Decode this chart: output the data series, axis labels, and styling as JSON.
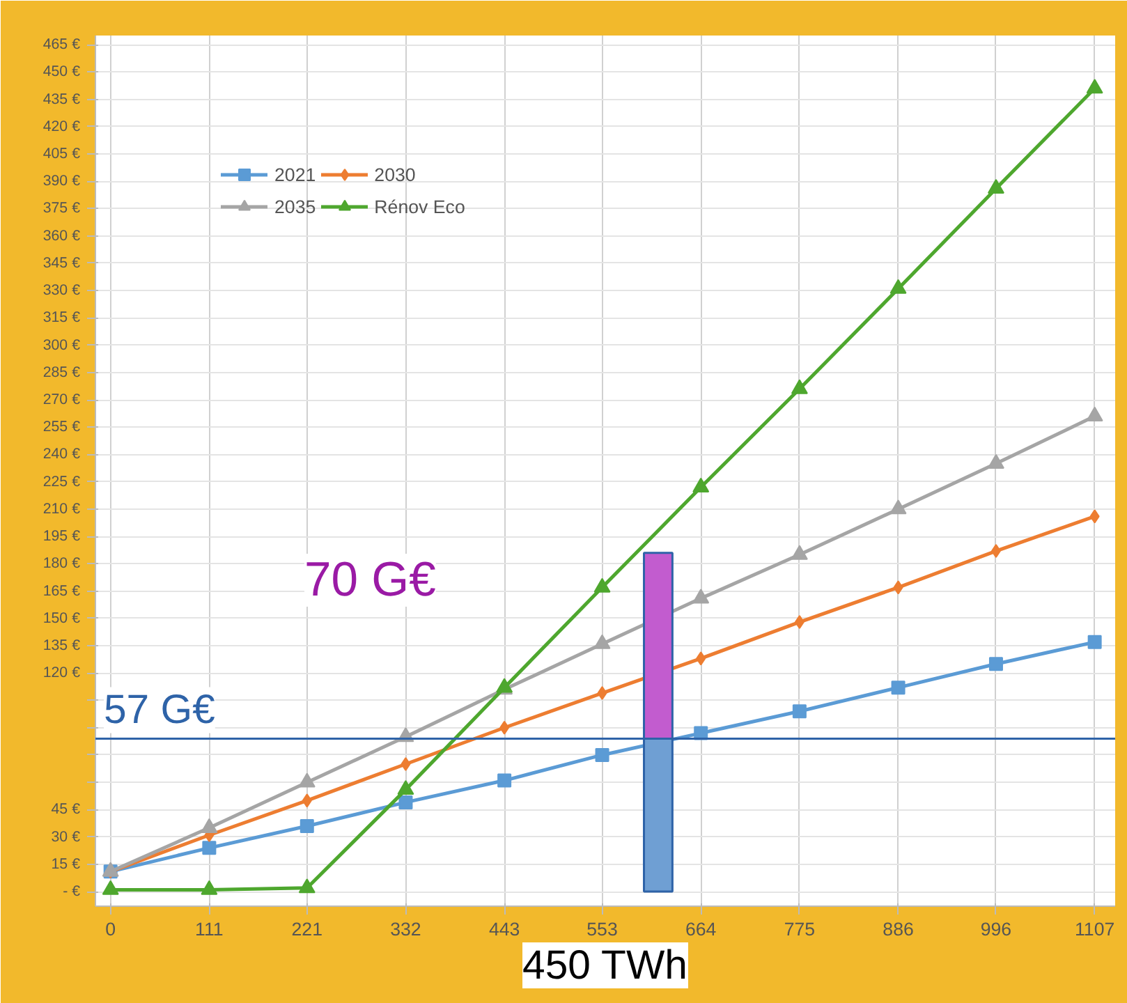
{
  "chart_data": {
    "type": "line",
    "x": [
      0,
      111,
      221,
      332,
      443,
      553,
      664,
      775,
      886,
      996,
      1107
    ],
    "xlim": [
      -17,
      1130
    ],
    "xticks": [
      0,
      111,
      221,
      332,
      443,
      553,
      664,
      775,
      886,
      996,
      1107
    ],
    "ylim": [
      -8,
      470
    ],
    "yticks": [
      {
        "value": 0,
        "label": "- €"
      },
      {
        "value": 15,
        "label": "15 €"
      },
      {
        "value": 30,
        "label": "30 €"
      },
      {
        "value": 45,
        "label": "45 €"
      },
      {
        "value": 60,
        "label": null
      },
      {
        "value": 75,
        "label": null
      },
      {
        "value": 90,
        "label": null
      },
      {
        "value": 105,
        "label": null
      },
      {
        "value": 120,
        "label": "120 €"
      },
      {
        "value": 135,
        "label": "135 €"
      },
      {
        "value": 150,
        "label": "150 €"
      },
      {
        "value": 165,
        "label": "165 €"
      },
      {
        "value": 180,
        "label": "180 €"
      },
      {
        "value": 195,
        "label": "195 €"
      },
      {
        "value": 210,
        "label": "210 €"
      },
      {
        "value": 225,
        "label": "225 €"
      },
      {
        "value": 240,
        "label": "240 €"
      },
      {
        "value": 255,
        "label": "255 €"
      },
      {
        "value": 270,
        "label": "270 €"
      },
      {
        "value": 285,
        "label": "285 €"
      },
      {
        "value": 300,
        "label": "300 €"
      },
      {
        "value": 315,
        "label": "315 €"
      },
      {
        "value": 330,
        "label": "330 €"
      },
      {
        "value": 345,
        "label": "345 €"
      },
      {
        "value": 360,
        "label": "360 €"
      },
      {
        "value": 375,
        "label": "375 €"
      },
      {
        "value": 390,
        "label": "390 €"
      },
      {
        "value": 405,
        "label": "405 €"
      },
      {
        "value": 420,
        "label": "420 €"
      },
      {
        "value": 435,
        "label": "435 €"
      },
      {
        "value": 450,
        "label": "450 €"
      },
      {
        "value": 465,
        "label": "465 €"
      }
    ],
    "grid": true,
    "legend": "top left",
    "series": [
      {
        "name": "2021",
        "color": "#5b9bd5",
        "marker": "square",
        "values": [
          11,
          24,
          36,
          49,
          61,
          75,
          87,
          99,
          112,
          125,
          137
        ]
      },
      {
        "name": "2030",
        "color": "#ed7d31",
        "marker": "diamond",
        "values": [
          11,
          31,
          50,
          70,
          90,
          109,
          128,
          148,
          167,
          187,
          206
        ]
      },
      {
        "name": "2035",
        "color": "#a5a5a5",
        "marker": "triangle",
        "values": [
          11,
          35,
          60,
          85,
          111,
          136,
          161,
          185,
          210,
          235,
          261
        ]
      },
      {
        "name": "Rénov Eco",
        "color": "#4ea72e",
        "marker": "triangle",
        "values": [
          1,
          1,
          2,
          56,
          112,
          167,
          222,
          276,
          331,
          386,
          441
        ]
      },
      {
        "type": "bar",
        "color": "#6f9fd3",
        "x": [
          616
        ],
        "base": [
          0
        ],
        "values": [
          84
        ]
      },
      {
        "type": "bar",
        "color": "#c25ccf",
        "x": [
          616
        ],
        "base": [
          84
        ],
        "values": [
          102
        ]
      }
    ],
    "ref_lines": [
      {
        "axis": "y",
        "value": 84,
        "label": "57 G€",
        "color": "#2e63a8"
      }
    ],
    "annotations": [
      "70 G€",
      "450 TWh"
    ]
  }
}
